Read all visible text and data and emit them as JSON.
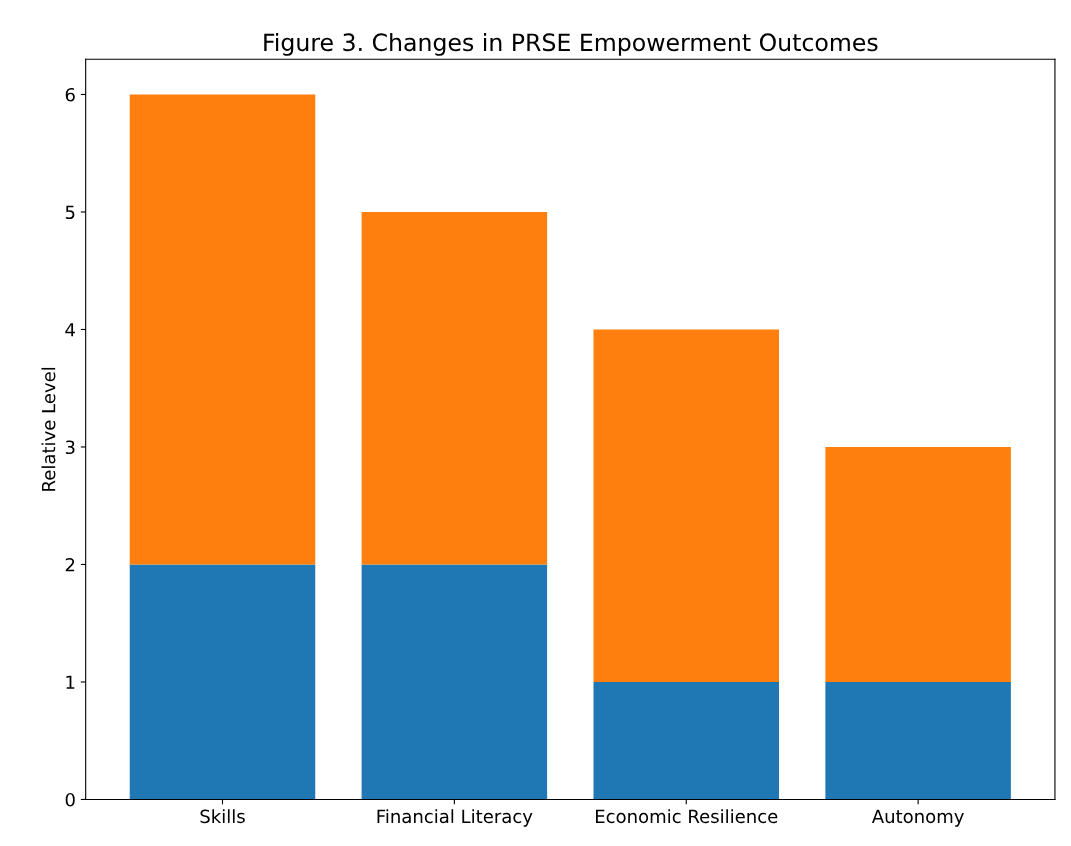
{
  "chart_data": {
    "type": "bar",
    "title": "Figure 3. Changes in PRSE Empowerment Outcomes",
    "ylabel": "Relative Level",
    "categories": [
      "Skills",
      "Financial Literacy",
      "Economic Resilience",
      "Autonomy"
    ],
    "stacked": true,
    "series": [
      {
        "color": "#1f77b4",
        "values": [
          2,
          2,
          1,
          1
        ]
      },
      {
        "color": "#ff7f0e",
        "values": [
          4,
          3,
          3,
          2
        ]
      }
    ],
    "ylim": [
      0,
      6.3
    ],
    "yticks": [
      0,
      1,
      2,
      3,
      4,
      5,
      6
    ],
    "grid": false
  }
}
